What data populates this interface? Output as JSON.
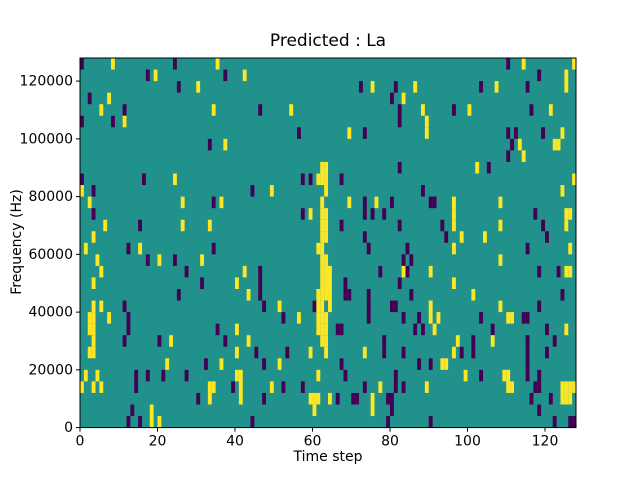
{
  "chart_data": {
    "type": "heatmap",
    "title": "Predicted : La",
    "xlabel": "Time step",
    "ylabel": "Frequency (Hz)",
    "xlim": [
      0,
      128
    ],
    "ylim": [
      0,
      128000
    ],
    "x_ticks": [
      0,
      20,
      40,
      60,
      80,
      100,
      120
    ],
    "y_ticks": [
      0,
      20000,
      40000,
      60000,
      80000,
      100000,
      120000
    ],
    "grid_cols": 128,
    "grid_rows": 32,
    "colormap": "viridis",
    "colors": {
      "background": "#21918c",
      "high": "#fde725",
      "low": "#440154",
      "axis": "#000000"
    },
    "legend": "none",
    "cells_format": "[time_index, row_from_top, value] ; value 1 = high (yellow), -1 = low (purple), background = 0 (teal)",
    "cells": [
      [
        0,
        0,
        -1
      ],
      [
        8,
        0,
        1
      ],
      [
        24,
        0,
        -1
      ],
      [
        35,
        0,
        1
      ],
      [
        110,
        0,
        -1
      ],
      [
        114,
        0,
        1
      ],
      [
        127,
        0,
        1
      ],
      [
        17,
        1,
        -1
      ],
      [
        19,
        1,
        1
      ],
      [
        37,
        1,
        -1
      ],
      [
        42,
        1,
        1
      ],
      [
        118,
        1,
        -1
      ],
      [
        125,
        1,
        1
      ],
      [
        25,
        2,
        -1
      ],
      [
        30,
        2,
        1
      ],
      [
        72,
        2,
        -1
      ],
      [
        75,
        2,
        1
      ],
      [
        81,
        2,
        -1
      ],
      [
        86,
        2,
        1
      ],
      [
        103,
        2,
        -1
      ],
      [
        107,
        2,
        1
      ],
      [
        115,
        2,
        -1
      ],
      [
        125,
        2,
        1
      ],
      [
        2,
        3,
        -1
      ],
      [
        7,
        3,
        1
      ],
      [
        80,
        3,
        -1
      ],
      [
        83,
        3,
        1
      ],
      [
        5,
        4,
        1
      ],
      [
        11,
        4,
        -1
      ],
      [
        34,
        4,
        1
      ],
      [
        46,
        4,
        -1
      ],
      [
        54,
        4,
        1
      ],
      [
        82,
        4,
        -1
      ],
      [
        88,
        4,
        1
      ],
      [
        96,
        4,
        -1
      ],
      [
        100,
        4,
        1
      ],
      [
        116,
        4,
        -1
      ],
      [
        121,
        4,
        1
      ],
      [
        0,
        5,
        -1
      ],
      [
        8,
        5,
        -1
      ],
      [
        11,
        5,
        1
      ],
      [
        82,
        5,
        -1
      ],
      [
        89,
        5,
        1
      ],
      [
        56,
        6,
        -1
      ],
      [
        69,
        6,
        1
      ],
      [
        73,
        6,
        -1
      ],
      [
        89,
        6,
        1
      ],
      [
        110,
        6,
        -1
      ],
      [
        112,
        6,
        -1
      ],
      [
        119,
        6,
        -1
      ],
      [
        124,
        6,
        1
      ],
      [
        33,
        7,
        -1
      ],
      [
        37,
        7,
        1
      ],
      [
        111,
        7,
        -1
      ],
      [
        113,
        7,
        1
      ],
      [
        122,
        7,
        1
      ],
      [
        123,
        7,
        1
      ],
      [
        110,
        8,
        -1
      ],
      [
        114,
        8,
        1
      ],
      [
        62,
        9,
        1
      ],
      [
        63,
        9,
        1
      ],
      [
        82,
        9,
        -1
      ],
      [
        102,
        9,
        1
      ],
      [
        105,
        9,
        -1
      ],
      [
        0,
        10,
        -1
      ],
      [
        16,
        10,
        -1
      ],
      [
        24,
        10,
        1
      ],
      [
        57,
        10,
        -1
      ],
      [
        59,
        10,
        -1
      ],
      [
        61,
        10,
        1
      ],
      [
        62,
        10,
        1
      ],
      [
        63,
        10,
        1
      ],
      [
        67,
        10,
        -1
      ],
      [
        127,
        10,
        1
      ],
      [
        0,
        11,
        1
      ],
      [
        3,
        11,
        -1
      ],
      [
        44,
        11,
        -1
      ],
      [
        49,
        11,
        1
      ],
      [
        63,
        11,
        1
      ],
      [
        88,
        11,
        -1
      ],
      [
        124,
        11,
        1
      ],
      [
        2,
        12,
        1
      ],
      [
        26,
        12,
        1
      ],
      [
        34,
        12,
        -1
      ],
      [
        36,
        12,
        1
      ],
      [
        62,
        12,
        1
      ],
      [
        69,
        12,
        1
      ],
      [
        73,
        12,
        -1
      ],
      [
        76,
        12,
        1
      ],
      [
        80,
        12,
        -1
      ],
      [
        90,
        12,
        -1
      ],
      [
        91,
        12,
        -1
      ],
      [
        96,
        12,
        1
      ],
      [
        108,
        12,
        1
      ],
      [
        3,
        13,
        -1
      ],
      [
        57,
        13,
        -1
      ],
      [
        59,
        13,
        1
      ],
      [
        62,
        13,
        1
      ],
      [
        63,
        13,
        1
      ],
      [
        73,
        13,
        -1
      ],
      [
        75,
        13,
        -1
      ],
      [
        78,
        13,
        -1
      ],
      [
        96,
        13,
        1
      ],
      [
        117,
        13,
        -1
      ],
      [
        125,
        13,
        1
      ],
      [
        126,
        13,
        1
      ],
      [
        6,
        14,
        1
      ],
      [
        15,
        14,
        -1
      ],
      [
        26,
        14,
        1
      ],
      [
        33,
        14,
        1
      ],
      [
        62,
        14,
        1
      ],
      [
        63,
        14,
        1
      ],
      [
        67,
        14,
        -1
      ],
      [
        82,
        14,
        -1
      ],
      [
        93,
        14,
        -1
      ],
      [
        96,
        14,
        1
      ],
      [
        108,
        14,
        1
      ],
      [
        119,
        14,
        -1
      ],
      [
        125,
        14,
        1
      ],
      [
        3,
        15,
        1
      ],
      [
        62,
        15,
        1
      ],
      [
        63,
        15,
        1
      ],
      [
        73,
        15,
        -1
      ],
      [
        94,
        15,
        -1
      ],
      [
        98,
        15,
        1
      ],
      [
        104,
        15,
        1
      ],
      [
        120,
        15,
        -1
      ],
      [
        1,
        16,
        1
      ],
      [
        12,
        16,
        -1
      ],
      [
        15,
        16,
        1
      ],
      [
        34,
        16,
        -1
      ],
      [
        61,
        16,
        1
      ],
      [
        62,
        16,
        1
      ],
      [
        74,
        16,
        -1
      ],
      [
        84,
        16,
        -1
      ],
      [
        96,
        16,
        1
      ],
      [
        115,
        16,
        -1
      ],
      [
        126,
        16,
        1
      ],
      [
        4,
        17,
        1
      ],
      [
        17,
        17,
        -1
      ],
      [
        20,
        17,
        1
      ],
      [
        24,
        17,
        -1
      ],
      [
        31,
        17,
        1
      ],
      [
        62,
        17,
        1
      ],
      [
        63,
        17,
        1
      ],
      [
        83,
        17,
        -1
      ],
      [
        85,
        17,
        -1
      ],
      [
        108,
        17,
        1
      ],
      [
        5,
        18,
        1
      ],
      [
        27,
        18,
        -1
      ],
      [
        42,
        18,
        1
      ],
      [
        46,
        18,
        -1
      ],
      [
        62,
        18,
        1
      ],
      [
        63,
        18,
        1
      ],
      [
        64,
        18,
        1
      ],
      [
        77,
        18,
        -1
      ],
      [
        83,
        18,
        1
      ],
      [
        84,
        18,
        -1
      ],
      [
        90,
        18,
        1
      ],
      [
        118,
        18,
        -1
      ],
      [
        123,
        18,
        -1
      ],
      [
        125,
        18,
        1
      ],
      [
        126,
        18,
        1
      ],
      [
        3,
        19,
        1
      ],
      [
        31,
        19,
        -1
      ],
      [
        40,
        19,
        1
      ],
      [
        46,
        19,
        -1
      ],
      [
        62,
        19,
        1
      ],
      [
        63,
        19,
        1
      ],
      [
        64,
        19,
        1
      ],
      [
        68,
        19,
        -1
      ],
      [
        82,
        19,
        -1
      ],
      [
        96,
        19,
        1
      ],
      [
        25,
        20,
        -1
      ],
      [
        43,
        20,
        1
      ],
      [
        46,
        20,
        -1
      ],
      [
        61,
        20,
        1
      ],
      [
        62,
        20,
        1
      ],
      [
        63,
        20,
        1
      ],
      [
        64,
        20,
        1
      ],
      [
        68,
        20,
        -1
      ],
      [
        69,
        20,
        -1
      ],
      [
        74,
        20,
        -1
      ],
      [
        85,
        20,
        -1
      ],
      [
        101,
        20,
        1
      ],
      [
        124,
        20,
        -1
      ],
      [
        3,
        21,
        1
      ],
      [
        5,
        21,
        1
      ],
      [
        11,
        21,
        -1
      ],
      [
        47,
        21,
        -1
      ],
      [
        51,
        21,
        1
      ],
      [
        60,
        21,
        -1
      ],
      [
        61,
        21,
        1
      ],
      [
        62,
        21,
        1
      ],
      [
        64,
        21,
        1
      ],
      [
        74,
        21,
        -1
      ],
      [
        80,
        21,
        -1
      ],
      [
        81,
        21,
        -1
      ],
      [
        90,
        21,
        1
      ],
      [
        108,
        21,
        1
      ],
      [
        118,
        21,
        -1
      ],
      [
        2,
        22,
        1
      ],
      [
        3,
        22,
        1
      ],
      [
        7,
        22,
        1
      ],
      [
        12,
        22,
        -1
      ],
      [
        52,
        22,
        -1
      ],
      [
        56,
        22,
        1
      ],
      [
        61,
        22,
        1
      ],
      [
        62,
        22,
        1
      ],
      [
        63,
        22,
        1
      ],
      [
        74,
        22,
        -1
      ],
      [
        83,
        22,
        -1
      ],
      [
        87,
        22,
        -1
      ],
      [
        90,
        22,
        1
      ],
      [
        92,
        22,
        1
      ],
      [
        103,
        22,
        -1
      ],
      [
        110,
        22,
        1
      ],
      [
        111,
        22,
        1
      ],
      [
        114,
        22,
        -1
      ],
      [
        115,
        22,
        -1
      ],
      [
        2,
        23,
        1
      ],
      [
        3,
        23,
        1
      ],
      [
        12,
        23,
        -1
      ],
      [
        35,
        23,
        -1
      ],
      [
        40,
        23,
        1
      ],
      [
        61,
        23,
        1
      ],
      [
        62,
        23,
        1
      ],
      [
        63,
        23,
        1
      ],
      [
        66,
        23,
        -1
      ],
      [
        67,
        23,
        -1
      ],
      [
        86,
        23,
        -1
      ],
      [
        88,
        23,
        -1
      ],
      [
        91,
        23,
        1
      ],
      [
        106,
        23,
        -1
      ],
      [
        120,
        23,
        -1
      ],
      [
        125,
        23,
        1
      ],
      [
        3,
        24,
        1
      ],
      [
        11,
        24,
        -1
      ],
      [
        20,
        24,
        -1
      ],
      [
        23,
        24,
        1
      ],
      [
        37,
        24,
        -1
      ],
      [
        43,
        24,
        1
      ],
      [
        62,
        24,
        1
      ],
      [
        63,
        24,
        1
      ],
      [
        78,
        24,
        -1
      ],
      [
        97,
        24,
        1
      ],
      [
        101,
        24,
        -1
      ],
      [
        106,
        24,
        1
      ],
      [
        115,
        24,
        -1
      ],
      [
        122,
        24,
        -1
      ],
      [
        2,
        25,
        1
      ],
      [
        3,
        25,
        1
      ],
      [
        40,
        25,
        1
      ],
      [
        45,
        25,
        -1
      ],
      [
        53,
        25,
        -1
      ],
      [
        59,
        25,
        1
      ],
      [
        63,
        25,
        1
      ],
      [
        73,
        25,
        1
      ],
      [
        78,
        25,
        -1
      ],
      [
        83,
        25,
        -1
      ],
      [
        96,
        25,
        1
      ],
      [
        98,
        25,
        -1
      ],
      [
        101,
        25,
        -1
      ],
      [
        115,
        25,
        -1
      ],
      [
        120,
        25,
        -1
      ],
      [
        22,
        26,
        1
      ],
      [
        32,
        26,
        -1
      ],
      [
        36,
        26,
        1
      ],
      [
        47,
        26,
        -1
      ],
      [
        51,
        26,
        1
      ],
      [
        67,
        26,
        -1
      ],
      [
        87,
        26,
        -1
      ],
      [
        90,
        26,
        -1
      ],
      [
        93,
        26,
        1
      ],
      [
        94,
        26,
        1
      ],
      [
        115,
        26,
        -1
      ],
      [
        1,
        27,
        1
      ],
      [
        4,
        27,
        1
      ],
      [
        14,
        27,
        -1
      ],
      [
        17,
        27,
        -1
      ],
      [
        21,
        27,
        -1
      ],
      [
        27,
        27,
        -1
      ],
      [
        40,
        27,
        1
      ],
      [
        41,
        27,
        1
      ],
      [
        61,
        27,
        1
      ],
      [
        68,
        27,
        -1
      ],
      [
        81,
        27,
        -1
      ],
      [
        99,
        27,
        1
      ],
      [
        103,
        27,
        -1
      ],
      [
        109,
        27,
        1
      ],
      [
        110,
        27,
        1
      ],
      [
        115,
        27,
        -1
      ],
      [
        118,
        27,
        -1
      ],
      [
        0,
        28,
        1
      ],
      [
        3,
        28,
        1
      ],
      [
        5,
        28,
        1
      ],
      [
        14,
        28,
        -1
      ],
      [
        33,
        28,
        1
      ],
      [
        34,
        28,
        1
      ],
      [
        39,
        28,
        -1
      ],
      [
        41,
        28,
        1
      ],
      [
        49,
        28,
        1
      ],
      [
        52,
        28,
        -1
      ],
      [
        57,
        28,
        -1
      ],
      [
        73,
        28,
        -1
      ],
      [
        77,
        28,
        1
      ],
      [
        81,
        28,
        -1
      ],
      [
        83,
        28,
        -1
      ],
      [
        89,
        28,
        1
      ],
      [
        110,
        28,
        1
      ],
      [
        111,
        28,
        1
      ],
      [
        117,
        28,
        -1
      ],
      [
        118,
        28,
        -1
      ],
      [
        124,
        28,
        1
      ],
      [
        125,
        28,
        1
      ],
      [
        126,
        28,
        1
      ],
      [
        127,
        28,
        1
      ],
      [
        30,
        29,
        -1
      ],
      [
        33,
        29,
        1
      ],
      [
        41,
        29,
        1
      ],
      [
        47,
        29,
        -1
      ],
      [
        59,
        29,
        1
      ],
      [
        60,
        29,
        1
      ],
      [
        61,
        29,
        1
      ],
      [
        64,
        29,
        1
      ],
      [
        66,
        29,
        -1
      ],
      [
        70,
        29,
        -1
      ],
      [
        71,
        29,
        -1
      ],
      [
        75,
        29,
        1
      ],
      [
        79,
        29,
        -1
      ],
      [
        80,
        29,
        -1
      ],
      [
        116,
        29,
        -1
      ],
      [
        121,
        29,
        -1
      ],
      [
        124,
        29,
        1
      ],
      [
        125,
        29,
        1
      ],
      [
        126,
        29,
        1
      ],
      [
        13,
        30,
        -1
      ],
      [
        18,
        30,
        1
      ],
      [
        60,
        30,
        1
      ],
      [
        75,
        30,
        1
      ],
      [
        80,
        30,
        -1
      ],
      [
        118,
        30,
        -1
      ],
      [
        12,
        31,
        -1
      ],
      [
        15,
        31,
        -1
      ],
      [
        18,
        31,
        1
      ],
      [
        20,
        31,
        1
      ],
      [
        44,
        31,
        -1
      ],
      [
        79,
        31,
        -1
      ],
      [
        90,
        31,
        -1
      ],
      [
        122,
        31,
        -1
      ],
      [
        126,
        31,
        -1
      ],
      [
        127,
        31,
        -1
      ]
    ]
  }
}
